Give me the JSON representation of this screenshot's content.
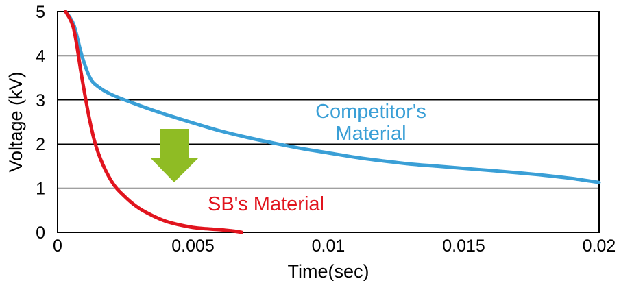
{
  "chart_data": {
    "type": "line",
    "xlabel": "Time(sec)",
    "ylabel": "Voltage (kV)",
    "xlim": [
      0,
      0.02
    ],
    "ylim": [
      0,
      5
    ],
    "x_ticks": [
      "0",
      "0.005",
      "0.01",
      "0.015",
      "0.02"
    ],
    "y_ticks": [
      "0",
      "1",
      "2",
      "3",
      "4",
      "5"
    ],
    "grid": "horizontal",
    "annotation": "downward-arrow",
    "series": [
      {
        "name": "Competitor's Material",
        "label_lines": [
          "Competitor's",
          "Material"
        ],
        "color": "#3a9fd6",
        "x": [
          0.0003,
          0.0006,
          0.0009,
          0.0012,
          0.0015,
          0.002,
          0.003,
          0.004,
          0.005,
          0.006,
          0.007,
          0.008,
          0.009,
          0.01,
          0.011,
          0.012,
          0.013,
          0.014,
          0.015,
          0.016,
          0.017,
          0.018,
          0.019,
          0.02
        ],
        "values": [
          5.0,
          4.7,
          4.0,
          3.5,
          3.3,
          3.12,
          2.88,
          2.67,
          2.48,
          2.3,
          2.15,
          2.02,
          1.9,
          1.8,
          1.7,
          1.62,
          1.55,
          1.5,
          1.45,
          1.4,
          1.35,
          1.29,
          1.22,
          1.13
        ]
      },
      {
        "name": "SB's Material",
        "label_lines": [
          "SB's Material"
        ],
        "color": "#e1141e",
        "x": [
          0.0003,
          0.0006,
          0.0009,
          0.0012,
          0.0015,
          0.002,
          0.0025,
          0.003,
          0.0035,
          0.004,
          0.0045,
          0.005,
          0.0055,
          0.006,
          0.0065,
          0.0068
        ],
        "values": [
          5.0,
          4.6,
          3.5,
          2.5,
          1.8,
          1.15,
          0.8,
          0.55,
          0.38,
          0.25,
          0.17,
          0.11,
          0.08,
          0.06,
          0.03,
          0.0
        ]
      }
    ]
  }
}
